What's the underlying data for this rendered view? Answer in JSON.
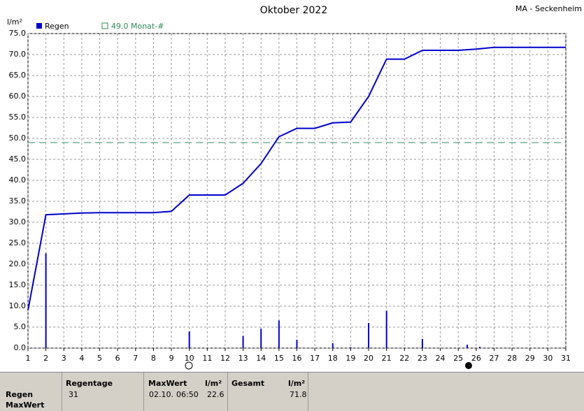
{
  "chart_data": {
    "type": "combo",
    "title": "Oktober 2022",
    "station": "MA - Seckenheim",
    "y_label": "l/m²",
    "series": [
      {
        "name": "Regen",
        "type": "bar",
        "color": "#0000cc",
        "x": [
          2,
          10,
          13,
          14,
          15,
          16,
          18,
          19,
          20,
          21,
          23,
          25.5,
          26.2
        ],
        "values": [
          22.6,
          4,
          2.9,
          4.6,
          6.6,
          2,
          1.2,
          0.2,
          6,
          8.9,
          2.2,
          0.8,
          0.3
        ]
      },
      {
        "type": "line",
        "color": "#0000cc",
        "x": [
          1,
          2,
          3,
          4,
          5,
          6,
          7,
          8,
          9,
          10,
          11,
          12,
          13,
          14,
          15,
          16,
          17,
          18,
          19,
          20,
          21,
          22,
          23,
          24,
          25,
          26,
          27,
          28,
          29,
          30,
          31
        ],
        "values": [
          9,
          31.8,
          32,
          32.2,
          32.3,
          32.3,
          32.3,
          32.3,
          32.6,
          36.5,
          36.5,
          36.5,
          39.3,
          44,
          50.4,
          52.4,
          52.4,
          53.7,
          53.9,
          60,
          68.9,
          68.9,
          71,
          71,
          71,
          71.3,
          71.7,
          71.7,
          71.7,
          71.7,
          71.7
        ]
      }
    ],
    "reference": {
      "name": "49.0 Monat-#",
      "value": 49.0,
      "color": "#2e8b57"
    },
    "xlim": [
      1,
      31
    ],
    "xticks": [
      1,
      2,
      3,
      4,
      5,
      6,
      7,
      8,
      9,
      10,
      11,
      12,
      13,
      14,
      15,
      16,
      17,
      18,
      19,
      20,
      21,
      22,
      23,
      24,
      25,
      26,
      27,
      28,
      29,
      30,
      31
    ],
    "ylim": [
      0,
      75
    ],
    "yticks": [
      {
        "value": 0,
        "label": "0.0"
      },
      {
        "value": 5,
        "label": "5.0"
      },
      {
        "value": 10,
        "label": "10.0"
      },
      {
        "value": 15,
        "label": "15.0"
      },
      {
        "value": 20,
        "label": "20.0"
      },
      {
        "value": 25,
        "label": "25.0"
      },
      {
        "value": 30,
        "label": "30.0"
      },
      {
        "value": 35,
        "label": "35.0"
      },
      {
        "value": 40,
        "label": "40.0"
      },
      {
        "value": 45,
        "label": "45.0"
      },
      {
        "value": 50,
        "label": "50.0"
      },
      {
        "value": 55,
        "label": "55.0"
      },
      {
        "value": 60,
        "label": "60.0"
      },
      {
        "value": 65,
        "label": "65.0"
      },
      {
        "value": 70,
        "label": "70.0"
      },
      {
        "value": 75,
        "label": "75.0"
      }
    ],
    "grid": true
  },
  "table": {
    "row_labels": [
      "Regen",
      "MaxWert"
    ],
    "headers": [
      "Regentage",
      "MaxWert",
      "l/m²",
      "Gesamt",
      "l/m²"
    ],
    "cells": [
      "31",
      "02.10.",
      "06:50",
      "22.6",
      "71.8"
    ]
  }
}
